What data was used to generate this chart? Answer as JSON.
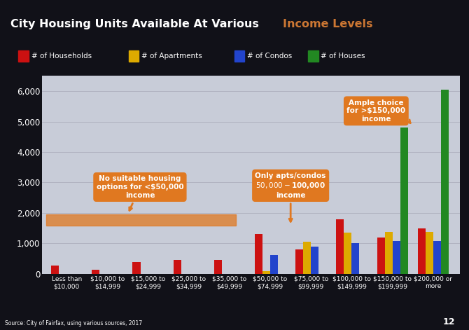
{
  "title_white": "City Housing Units Available At Various ",
  "title_orange": "Income Levels",
  "background_outer": "#111118",
  "background_title_bar": "#2a2a4a",
  "background_chart": "#c8ccd8",
  "categories": [
    "Less than\n$10,000",
    "$10,000 to\n$14,999",
    "$15,000 to\n$24,999",
    "$25,000 to\n$34,999",
    "$35,000 to\n$49,999",
    "$50,000 to\n$74,999",
    "$75,000 to\n$99,999",
    "$100,000 to\n$149,999",
    "$150,000 to\n$199,999",
    "$200,000 or\nmore"
  ],
  "series_names": [
    "Households",
    "Apartments",
    "Condos",
    "Houses"
  ],
  "series_colors": [
    "#cc1111",
    "#ddaa00",
    "#2244cc",
    "#228822"
  ],
  "households_values": [
    280,
    140,
    400,
    450,
    460,
    1300,
    800,
    1800,
    1200,
    1500
  ],
  "apartments_values": [
    0,
    0,
    0,
    0,
    0,
    80,
    1050,
    1350,
    1380,
    1380
  ],
  "condos_values": [
    0,
    0,
    0,
    0,
    0,
    620,
    900,
    1020,
    1070,
    1070
  ],
  "houses_values": [
    0,
    0,
    0,
    0,
    0,
    0,
    0,
    0,
    4800,
    6050
  ],
  "ylim": [
    0,
    6500
  ],
  "yticks": [
    0,
    1000,
    2000,
    3000,
    4000,
    5000,
    6000
  ],
  "legend_labels": [
    "# of Households",
    "# of Apartments",
    "# of Condos",
    "# of Houses"
  ],
  "legend_colors": [
    "#cc1111",
    "#ddaa00",
    "#2244cc",
    "#228822"
  ],
  "ann1_text": "No suitable housing\noptions for <$50,000\nincome",
  "ann2_text": "Only apts/condos\n$50,000 - $100,000\nincome",
  "ann3_text": "Ample choice\nfor >$150,000\nincome",
  "orange_color": "#e07820",
  "source_text": "Source: City of Fairfax, using various sources, 2017",
  "page_num": "12"
}
